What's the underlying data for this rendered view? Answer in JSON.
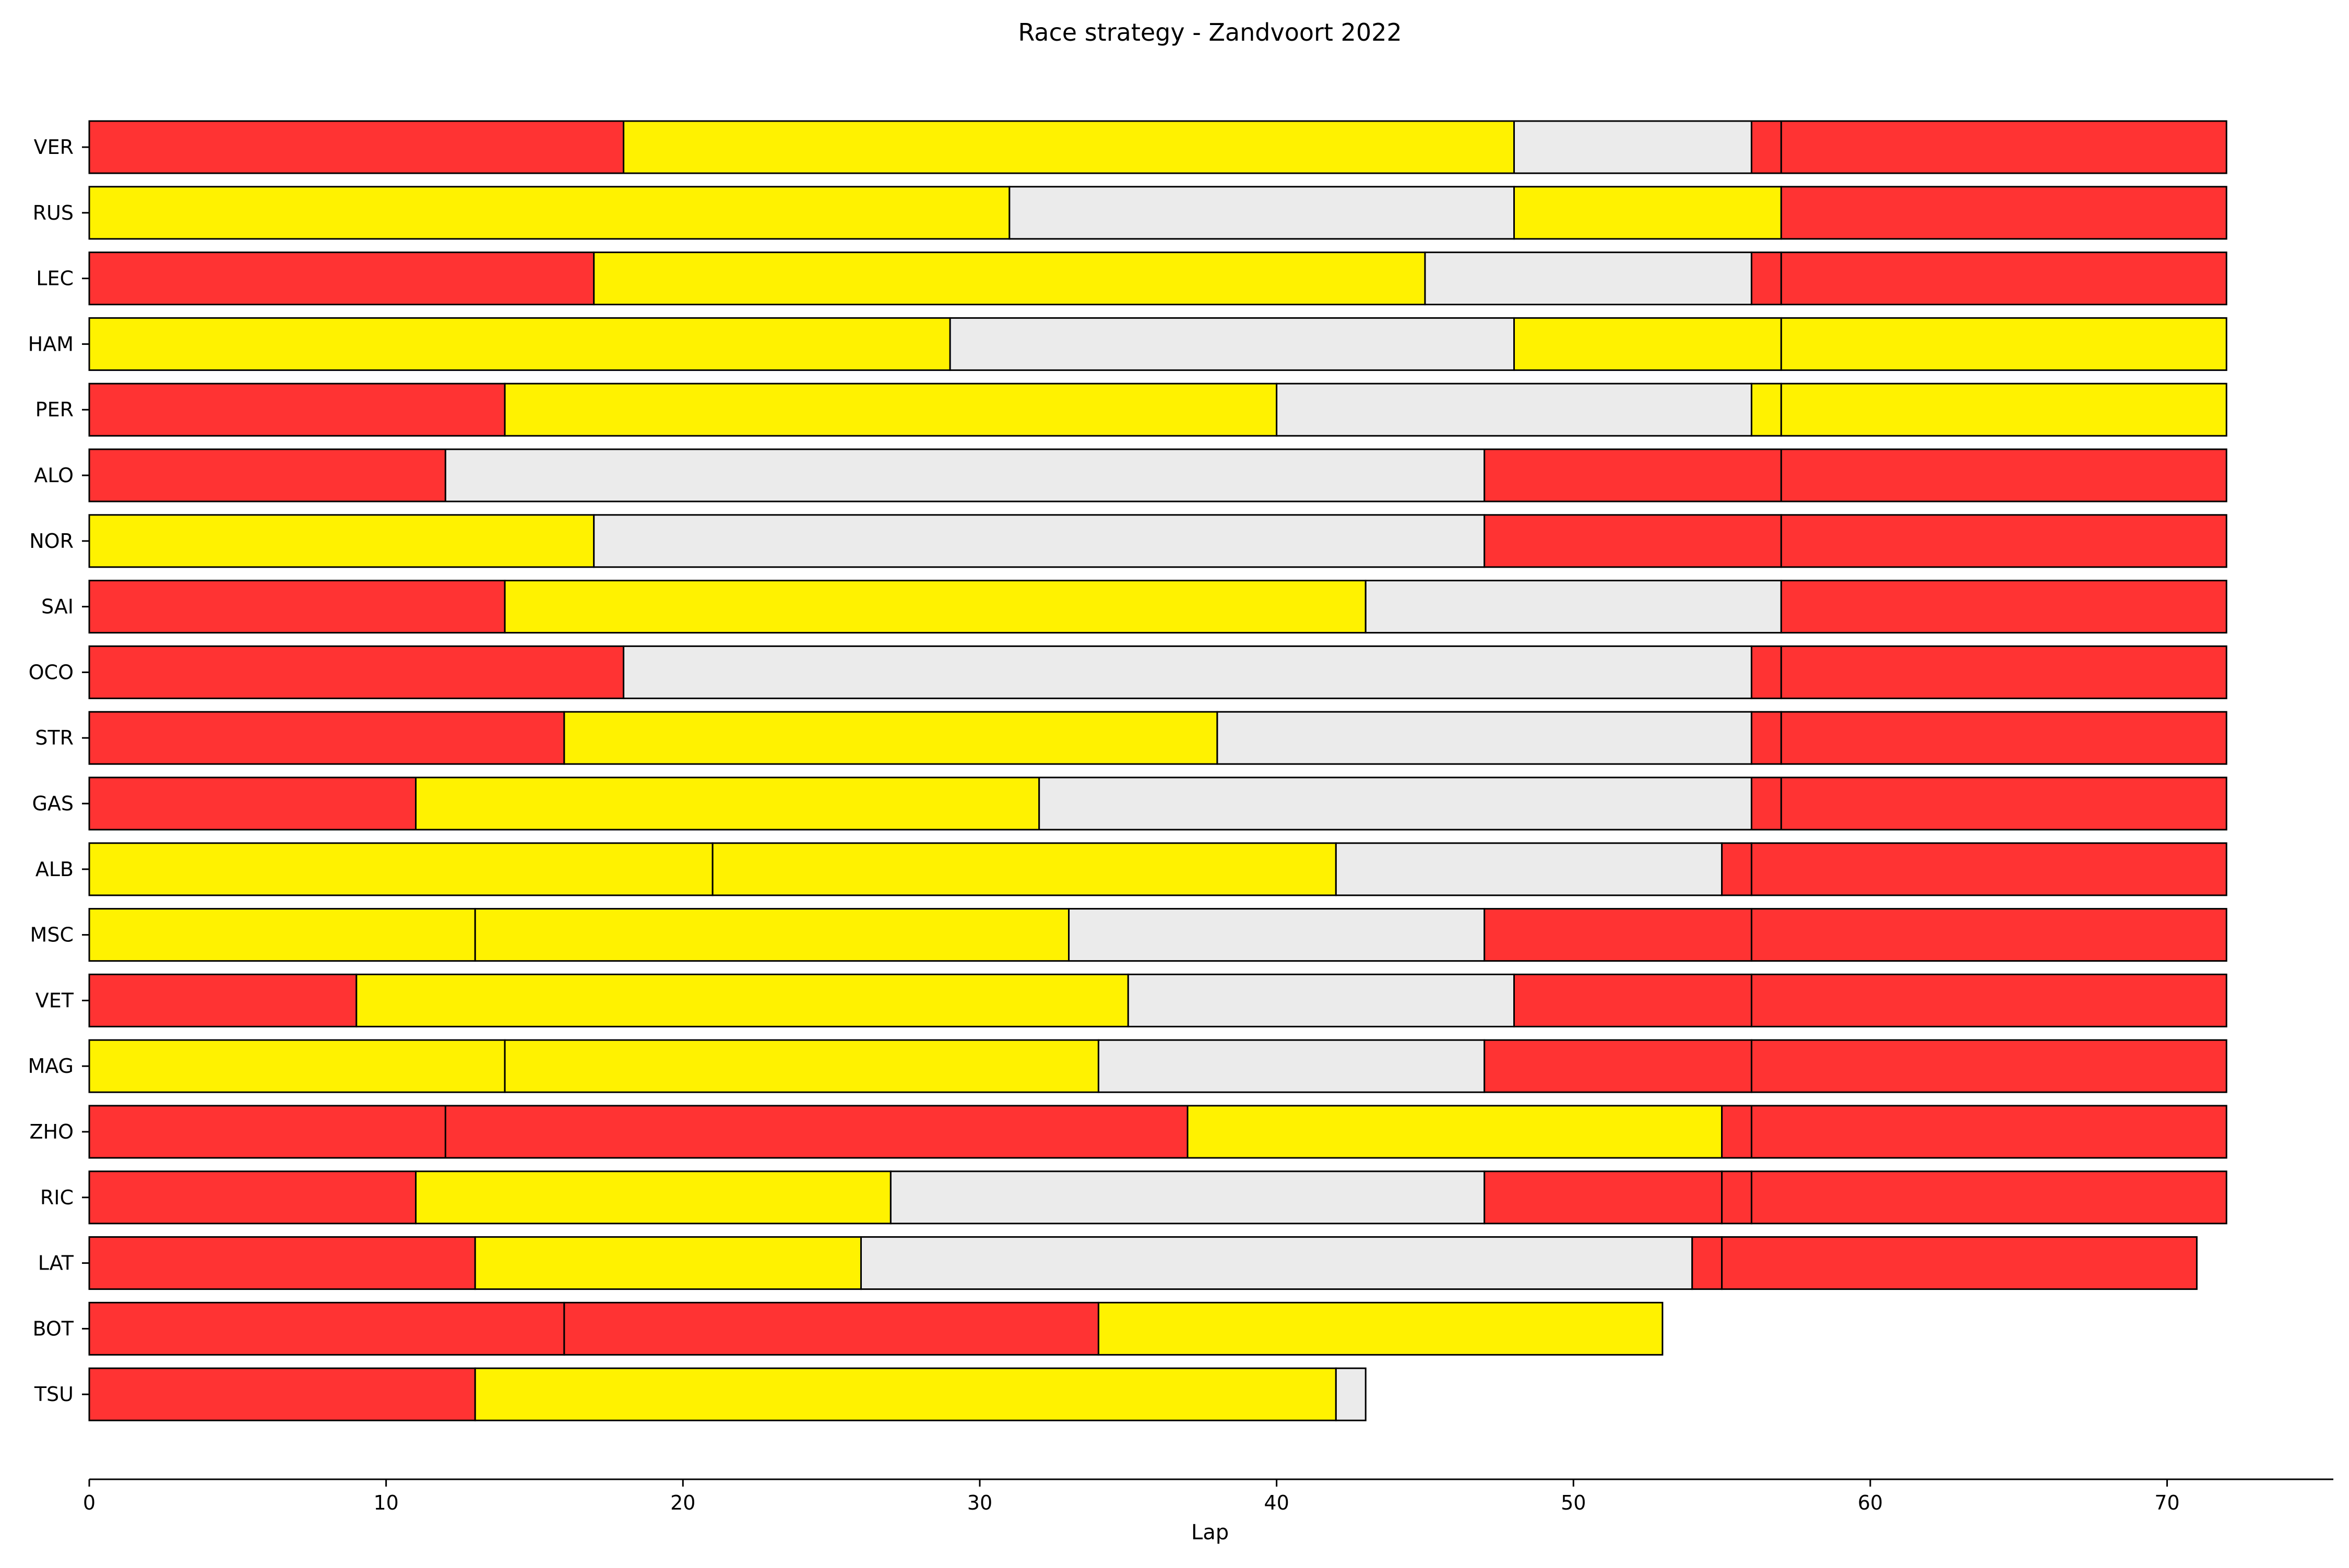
{
  "chart_data": {
    "type": "bar",
    "orientation": "horizontal",
    "stacked": true,
    "title": "Race strategy - Zandvoort 2022",
    "xlabel": "Lap",
    "ylabel": "",
    "xlim": [
      0,
      75.6
    ],
    "xticks": [
      0,
      10,
      20,
      30,
      40,
      50,
      60,
      70
    ],
    "grid": false,
    "legend": "none",
    "compound_colors": {
      "SOFT": "#ff3333",
      "MEDIUM": "#fff200",
      "HARD": "#ebebeb"
    },
    "drivers": [
      {
        "driver": "VER",
        "stints": [
          {
            "compound": "SOFT",
            "laps": 18
          },
          {
            "compound": "MEDIUM",
            "laps": 30
          },
          {
            "compound": "HARD",
            "laps": 8
          },
          {
            "compound": "SOFT",
            "laps": 1
          },
          {
            "compound": "SOFT",
            "laps": 15
          }
        ]
      },
      {
        "driver": "RUS",
        "stints": [
          {
            "compound": "MEDIUM",
            "laps": 31
          },
          {
            "compound": "HARD",
            "laps": 17
          },
          {
            "compound": "MEDIUM",
            "laps": 9
          },
          {
            "compound": "SOFT",
            "laps": 15
          }
        ]
      },
      {
        "driver": "LEC",
        "stints": [
          {
            "compound": "SOFT",
            "laps": 17
          },
          {
            "compound": "MEDIUM",
            "laps": 28
          },
          {
            "compound": "HARD",
            "laps": 11
          },
          {
            "compound": "SOFT",
            "laps": 1
          },
          {
            "compound": "SOFT",
            "laps": 15
          }
        ]
      },
      {
        "driver": "HAM",
        "stints": [
          {
            "compound": "MEDIUM",
            "laps": 29
          },
          {
            "compound": "HARD",
            "laps": 19
          },
          {
            "compound": "MEDIUM",
            "laps": 9
          },
          {
            "compound": "MEDIUM",
            "laps": 15
          }
        ]
      },
      {
        "driver": "PER",
        "stints": [
          {
            "compound": "SOFT",
            "laps": 14
          },
          {
            "compound": "MEDIUM",
            "laps": 26
          },
          {
            "compound": "HARD",
            "laps": 16
          },
          {
            "compound": "MEDIUM",
            "laps": 1
          },
          {
            "compound": "MEDIUM",
            "laps": 15
          }
        ]
      },
      {
        "driver": "ALO",
        "stints": [
          {
            "compound": "SOFT",
            "laps": 12
          },
          {
            "compound": "HARD",
            "laps": 35
          },
          {
            "compound": "SOFT",
            "laps": 10
          },
          {
            "compound": "SOFT",
            "laps": 15
          }
        ]
      },
      {
        "driver": "NOR",
        "stints": [
          {
            "compound": "MEDIUM",
            "laps": 17
          },
          {
            "compound": "HARD",
            "laps": 30
          },
          {
            "compound": "SOFT",
            "laps": 10
          },
          {
            "compound": "SOFT",
            "laps": 15
          }
        ]
      },
      {
        "driver": "SAI",
        "stints": [
          {
            "compound": "SOFT",
            "laps": 14
          },
          {
            "compound": "MEDIUM",
            "laps": 29
          },
          {
            "compound": "HARD",
            "laps": 14
          },
          {
            "compound": "SOFT",
            "laps": 15
          }
        ]
      },
      {
        "driver": "OCO",
        "stints": [
          {
            "compound": "SOFT",
            "laps": 18
          },
          {
            "compound": "HARD",
            "laps": 38
          },
          {
            "compound": "SOFT",
            "laps": 1
          },
          {
            "compound": "SOFT",
            "laps": 15
          }
        ]
      },
      {
        "driver": "STR",
        "stints": [
          {
            "compound": "SOFT",
            "laps": 16
          },
          {
            "compound": "MEDIUM",
            "laps": 22
          },
          {
            "compound": "HARD",
            "laps": 18
          },
          {
            "compound": "SOFT",
            "laps": 1
          },
          {
            "compound": "SOFT",
            "laps": 15
          }
        ]
      },
      {
        "driver": "GAS",
        "stints": [
          {
            "compound": "SOFT",
            "laps": 11
          },
          {
            "compound": "MEDIUM",
            "laps": 21
          },
          {
            "compound": "HARD",
            "laps": 24
          },
          {
            "compound": "SOFT",
            "laps": 1
          },
          {
            "compound": "SOFT",
            "laps": 15
          }
        ]
      },
      {
        "driver": "ALB",
        "stints": [
          {
            "compound": "MEDIUM",
            "laps": 21
          },
          {
            "compound": "MEDIUM",
            "laps": 21
          },
          {
            "compound": "HARD",
            "laps": 13
          },
          {
            "compound": "SOFT",
            "laps": 1
          },
          {
            "compound": "SOFT",
            "laps": 16
          }
        ]
      },
      {
        "driver": "MSC",
        "stints": [
          {
            "compound": "MEDIUM",
            "laps": 13
          },
          {
            "compound": "MEDIUM",
            "laps": 20
          },
          {
            "compound": "HARD",
            "laps": 14
          },
          {
            "compound": "SOFT",
            "laps": 9
          },
          {
            "compound": "SOFT",
            "laps": 16
          }
        ]
      },
      {
        "driver": "VET",
        "stints": [
          {
            "compound": "SOFT",
            "laps": 9
          },
          {
            "compound": "MEDIUM",
            "laps": 26
          },
          {
            "compound": "HARD",
            "laps": 13
          },
          {
            "compound": "SOFT",
            "laps": 8
          },
          {
            "compound": "SOFT",
            "laps": 16
          }
        ]
      },
      {
        "driver": "MAG",
        "stints": [
          {
            "compound": "MEDIUM",
            "laps": 14
          },
          {
            "compound": "MEDIUM",
            "laps": 20
          },
          {
            "compound": "HARD",
            "laps": 13
          },
          {
            "compound": "SOFT",
            "laps": 9
          },
          {
            "compound": "SOFT",
            "laps": 16
          }
        ]
      },
      {
        "driver": "ZHO",
        "stints": [
          {
            "compound": "SOFT",
            "laps": 12
          },
          {
            "compound": "SOFT",
            "laps": 25
          },
          {
            "compound": "MEDIUM",
            "laps": 18
          },
          {
            "compound": "SOFT",
            "laps": 1
          },
          {
            "compound": "SOFT",
            "laps": 16
          }
        ]
      },
      {
        "driver": "RIC",
        "stints": [
          {
            "compound": "SOFT",
            "laps": 11
          },
          {
            "compound": "MEDIUM",
            "laps": 16
          },
          {
            "compound": "HARD",
            "laps": 20
          },
          {
            "compound": "SOFT",
            "laps": 8
          },
          {
            "compound": "SOFT",
            "laps": 1
          },
          {
            "compound": "SOFT",
            "laps": 16
          }
        ]
      },
      {
        "driver": "LAT",
        "stints": [
          {
            "compound": "SOFT",
            "laps": 13
          },
          {
            "compound": "MEDIUM",
            "laps": 13
          },
          {
            "compound": "HARD",
            "laps": 28
          },
          {
            "compound": "SOFT",
            "laps": 1
          },
          {
            "compound": "SOFT",
            "laps": 16
          }
        ]
      },
      {
        "driver": "BOT",
        "stints": [
          {
            "compound": "SOFT",
            "laps": 16
          },
          {
            "compound": "SOFT",
            "laps": 18
          },
          {
            "compound": "MEDIUM",
            "laps": 19
          }
        ]
      },
      {
        "driver": "TSU",
        "stints": [
          {
            "compound": "SOFT",
            "laps": 13
          },
          {
            "compound": "MEDIUM",
            "laps": 29
          },
          {
            "compound": "HARD",
            "laps": 1
          }
        ]
      }
    ]
  }
}
